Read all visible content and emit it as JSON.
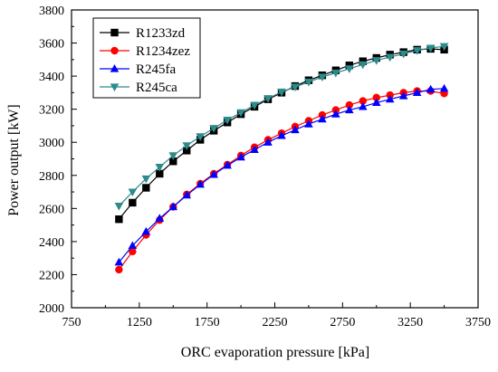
{
  "chart_data": {
    "type": "line",
    "title": "",
    "xlabel": "ORC evaporation pressure [kPa]",
    "ylabel": "Power output [kW]",
    "xlim": [
      750,
      3750
    ],
    "ylim": [
      2000,
      3800
    ],
    "xticks": [
      750,
      1250,
      1750,
      2250,
      2750,
      3250,
      3750
    ],
    "yticks": [
      2000,
      2200,
      2400,
      2600,
      2800,
      3000,
      3200,
      3400,
      3600,
      3800
    ],
    "grid": false,
    "legend_position": "top-left",
    "x": [
      1100,
      1200,
      1300,
      1400,
      1500,
      1600,
      1700,
      1800,
      1900,
      2000,
      2100,
      2200,
      2300,
      2400,
      2500,
      2600,
      2700,
      2800,
      2900,
      3000,
      3100,
      3200,
      3300,
      3400,
      3500
    ],
    "series": [
      {
        "name": "R1233zd",
        "color": "#000000",
        "marker": "square",
        "values": [
          2535,
          2635,
          2725,
          2810,
          2885,
          2950,
          3015,
          3070,
          3120,
          3170,
          3215,
          3260,
          3300,
          3340,
          3375,
          3405,
          3435,
          3465,
          3490,
          3510,
          3530,
          3545,
          3560,
          3565,
          3560
        ]
      },
      {
        "name": "R1234zez",
        "color": "#ff0000",
        "marker": "circle",
        "values": [
          2230,
          2340,
          2440,
          2530,
          2610,
          2685,
          2750,
          2810,
          2865,
          2920,
          2970,
          3015,
          3055,
          3095,
          3130,
          3165,
          3195,
          3225,
          3250,
          3270,
          3285,
          3300,
          3310,
          3310,
          3295
        ]
      },
      {
        "name": "R245fa",
        "color": "#0000ff",
        "marker": "triangle-up",
        "values": [
          2275,
          2375,
          2460,
          2540,
          2610,
          2680,
          2745,
          2805,
          2860,
          2910,
          2955,
          3000,
          3040,
          3075,
          3110,
          3140,
          3170,
          3195,
          3215,
          3240,
          3260,
          3280,
          3300,
          3320,
          3325
        ]
      },
      {
        "name": "R245ca",
        "color": "#2e8b8b",
        "marker": "triangle-down",
        "values": [
          2615,
          2700,
          2780,
          2850,
          2920,
          2980,
          3035,
          3085,
          3135,
          3180,
          3225,
          3265,
          3305,
          3335,
          3365,
          3395,
          3420,
          3445,
          3470,
          3495,
          3515,
          3535,
          3555,
          3570,
          3580
        ]
      }
    ]
  }
}
